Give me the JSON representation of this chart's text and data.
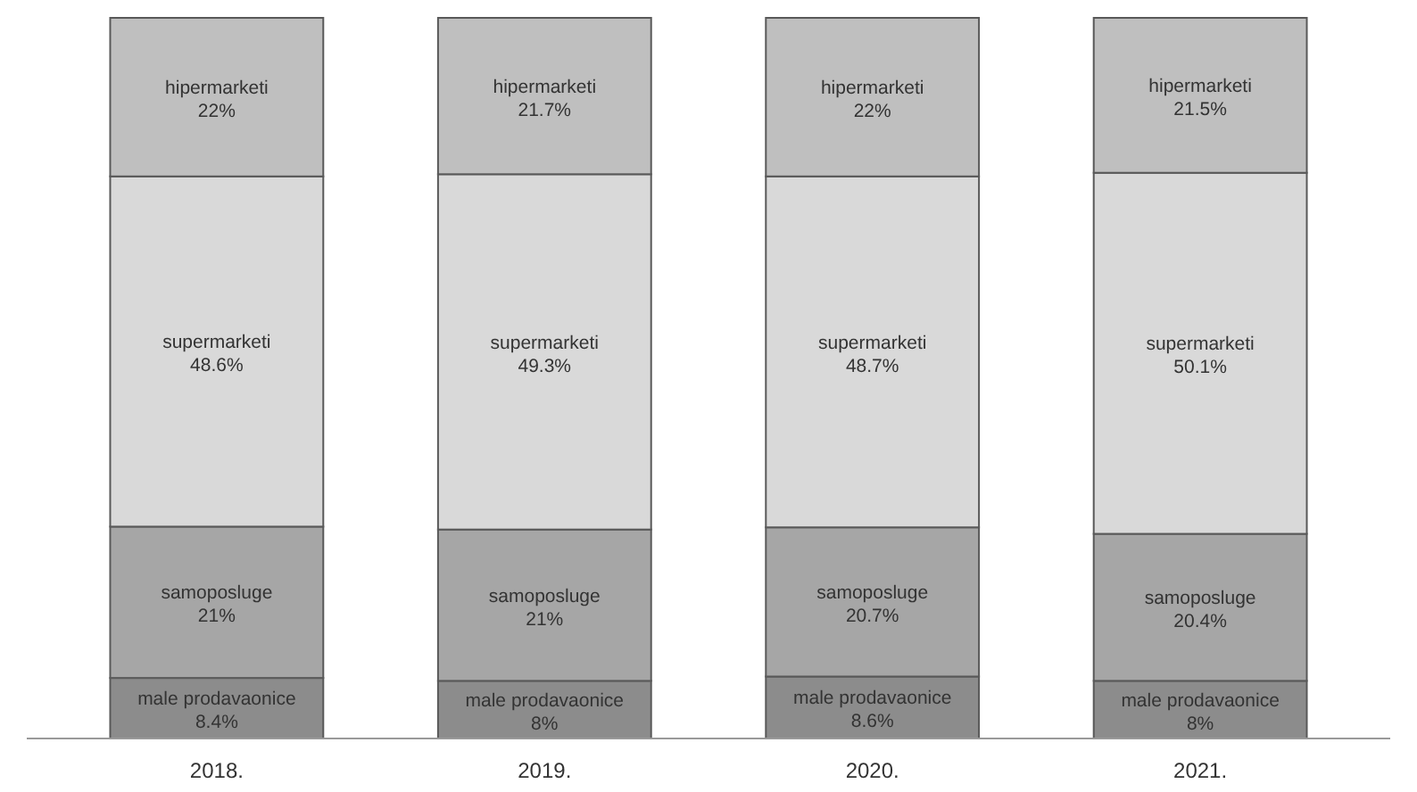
{
  "chart_data": {
    "type": "bar",
    "stacked": true,
    "categories": [
      "2018.",
      "2019.",
      "2020.",
      "2021."
    ],
    "series": [
      {
        "name": "male prodavaonice",
        "color": "#8c8c8c",
        "values": [
          8.4,
          8,
          8.6,
          8
        ],
        "value_labels": [
          "8.4%",
          "8%",
          "8.6%",
          "8%"
        ]
      },
      {
        "name": "samoposluge",
        "color": "#a6a6a6",
        "values": [
          21,
          21,
          20.7,
          20.4
        ],
        "value_labels": [
          "21%",
          "21%",
          "20.7%",
          "20.4%"
        ]
      },
      {
        "name": "supermarketi",
        "color": "#d9d9d9",
        "values": [
          48.6,
          49.3,
          48.7,
          50.1
        ],
        "value_labels": [
          "48.6%",
          "49.3%",
          "48.7%",
          "50.1%"
        ]
      },
      {
        "name": "hipermarketi",
        "color": "#bfbfbf",
        "values": [
          22,
          21.7,
          22,
          21.5
        ],
        "value_labels": [
          "22%",
          "21.7%",
          "22%",
          "21.5%"
        ]
      }
    ],
    "legend": false,
    "grid": false
  }
}
